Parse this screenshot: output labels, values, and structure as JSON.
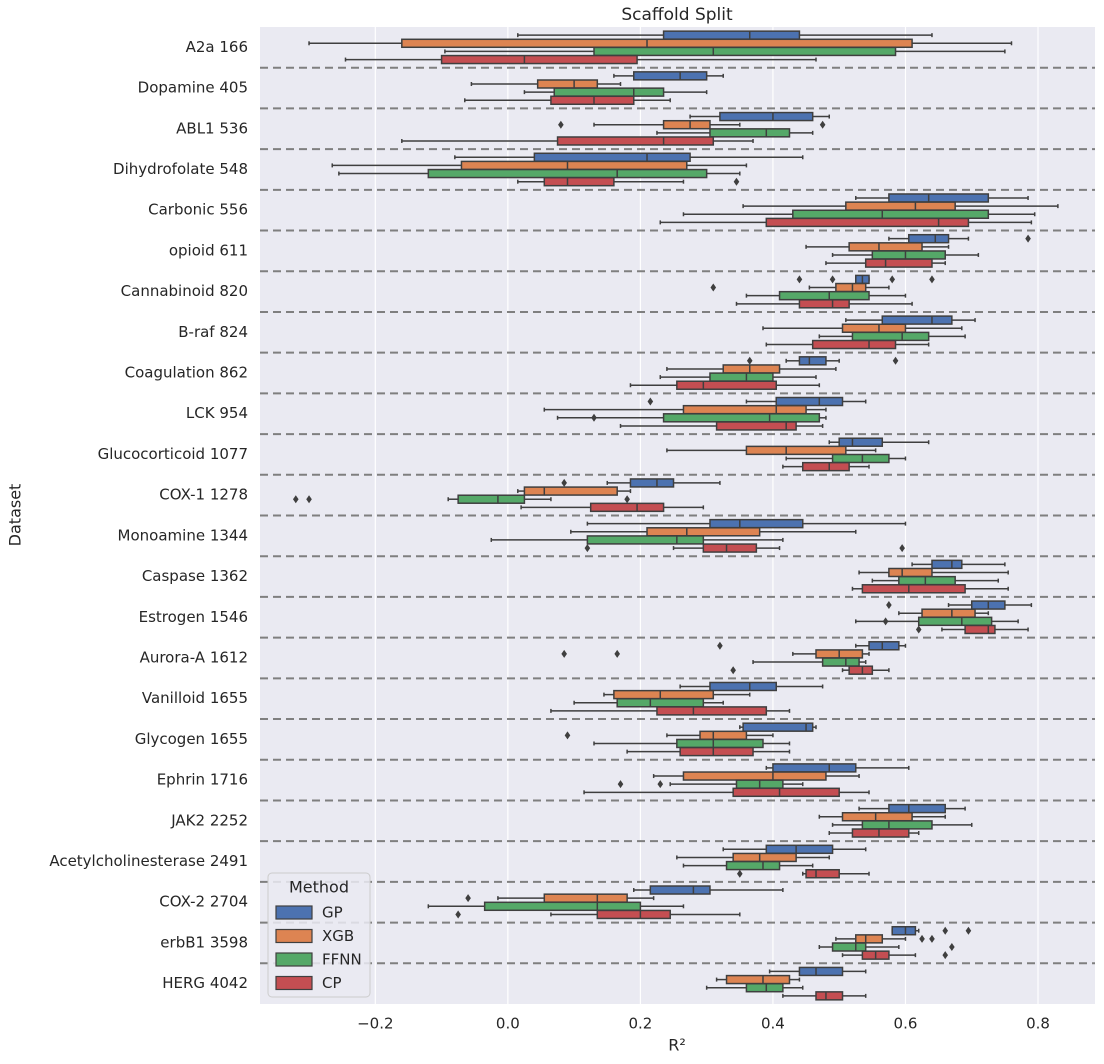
{
  "chart_data": {
    "type": "boxplot",
    "title": "Scaffold Split",
    "x_label": "R²",
    "y_label": "Dataset",
    "orientation": "horizontal",
    "grid": true,
    "legend_title": "Method",
    "legend_position": "lower left",
    "xlim": [
      -0.374,
      0.886
    ],
    "xticks": [
      {
        "value": -0.2,
        "label": "−0.2"
      },
      {
        "value": 0,
        "label": "0.0"
      },
      0.2,
      0.4,
      0.6,
      0.8
    ],
    "categories": [
      "A2a 166",
      "Dopamine 405",
      "ABL1 536",
      "Dihydrofolate 548",
      "Carbonic 556",
      "opioid 611",
      "Cannabinoid 820",
      "B-raf 824",
      "Coagulation 862",
      "LCK 954",
      "Glucocorticoid 1077",
      "COX-1 1278",
      "Monoamine 1344",
      "Caspase 1362",
      "Estrogen 1546",
      "Aurora-A 1612",
      "Vanilloid 1655",
      "Glycogen 1655",
      "Ephrin 1716",
      "JAK2 2252",
      "Acetylcholinesterase 2491",
      "COX-2 2704",
      "erbB1 3598",
      "HERG 4042"
    ],
    "series": [
      {
        "name": "GP",
        "color": "#4c72b0",
        "boxes": [
          [
            0.015,
            0.235,
            0.365,
            0.44,
            0.64
          ],
          [
            0.16,
            0.19,
            0.26,
            0.3,
            0.325
          ],
          [
            0.275,
            0.32,
            0.4,
            0.46,
            0.485
          ],
          [
            -0.08,
            0.04,
            0.21,
            0.275,
            0.445
          ],
          [
            0.525,
            0.575,
            0.635,
            0.725,
            0.785
          ],
          [
            0.575,
            0.605,
            0.645,
            0.665,
            0.695
          ],
          [
            0.525,
            0.525,
            0.535,
            0.545,
            0.545
          ],
          [
            0.51,
            0.565,
            0.64,
            0.67,
            0.705
          ],
          [
            0.42,
            0.44,
            0.455,
            0.48,
            0.5
          ],
          [
            0.36,
            0.405,
            0.47,
            0.505,
            0.54
          ],
          [
            0.485,
            0.5,
            0.52,
            0.565,
            0.635
          ],
          [
            0.15,
            0.185,
            0.225,
            0.25,
            0.32
          ],
          [
            0.12,
            0.305,
            0.35,
            0.445,
            0.6
          ],
          [
            0.61,
            0.64,
            0.67,
            0.685,
            0.75
          ],
          [
            0.665,
            0.7,
            0.725,
            0.75,
            0.79
          ],
          [
            0.525,
            0.545,
            0.565,
            0.59,
            0.6
          ],
          [
            0.26,
            0.305,
            0.365,
            0.405,
            0.475
          ],
          [
            0.35,
            0.355,
            0.45,
            0.46,
            0.465
          ],
          [
            0.39,
            0.4,
            0.485,
            0.525,
            0.605
          ],
          [
            0.53,
            0.575,
            0.605,
            0.66,
            0.69
          ],
          [
            0.325,
            0.39,
            0.435,
            0.49,
            0.54
          ],
          [
            0.19,
            0.215,
            0.28,
            0.305,
            0.415
          ],
          [
            0.58,
            0.58,
            0.6,
            0.615,
            0.62
          ],
          [
            0.395,
            0.44,
            0.465,
            0.505,
            0.54
          ]
        ],
        "outliers": [
          [],
          [],
          [],
          [],
          [],
          [
            0.785
          ],
          [
            0.44,
            0.49,
            0.58,
            0.64
          ],
          [],
          [
            0.365,
            0.585
          ],
          [
            0.215
          ],
          [],
          [
            0.085
          ],
          [],
          [],
          [
            0.575
          ],
          [
            0.32
          ],
          [],
          [],
          [],
          [],
          [],
          [],
          [
            0.66,
            0.695
          ],
          []
        ]
      },
      {
        "name": "XGB",
        "color": "#dd8452",
        "boxes": [
          [
            -0.3,
            -0.16,
            0.21,
            0.61,
            0.76
          ],
          [
            -0.055,
            0.045,
            0.1,
            0.135,
            0.17
          ],
          [
            0.13,
            0.235,
            0.275,
            0.305,
            0.35
          ],
          [
            -0.265,
            -0.07,
            0.09,
            0.27,
            0.36
          ],
          [
            0.355,
            0.51,
            0.615,
            0.675,
            0.83
          ],
          [
            0.45,
            0.515,
            0.56,
            0.625,
            0.665
          ],
          [
            0.455,
            0.495,
            0.52,
            0.54,
            0.575
          ],
          [
            0.385,
            0.505,
            0.56,
            0.6,
            0.685
          ],
          [
            0.24,
            0.325,
            0.365,
            0.41,
            0.495
          ],
          [
            0.055,
            0.265,
            0.405,
            0.45,
            0.48
          ],
          [
            0.24,
            0.36,
            0.42,
            0.51,
            0.555
          ],
          [
            0.015,
            0.025,
            0.055,
            0.165,
            0.185
          ],
          [
            0.095,
            0.21,
            0.27,
            0.38,
            0.525
          ],
          [
            0.53,
            0.575,
            0.595,
            0.64,
            0.755
          ],
          [
            0.59,
            0.625,
            0.67,
            0.705,
            0.725
          ],
          [
            0.43,
            0.465,
            0.5,
            0.535,
            0.545
          ],
          [
            0.145,
            0.16,
            0.23,
            0.31,
            0.365
          ],
          [
            0.24,
            0.29,
            0.31,
            0.36,
            0.4
          ],
          [
            0.22,
            0.265,
            0.4,
            0.48,
            0.53
          ],
          [
            0.47,
            0.505,
            0.555,
            0.61,
            0.66
          ],
          [
            0.255,
            0.34,
            0.38,
            0.435,
            0.485
          ],
          [
            -0.015,
            0.055,
            0.135,
            0.18,
            0.22
          ],
          [
            0.495,
            0.525,
            0.54,
            0.565,
            0.6
          ],
          [
            0.315,
            0.33,
            0.385,
            0.425,
            0.44
          ]
        ],
        "outliers": [
          [],
          [],
          [
            0.08,
            0.475
          ],
          [],
          [],
          [],
          [
            0.31
          ],
          [],
          [],
          [],
          [],
          [],
          [],
          [],
          [],
          [
            0.085,
            0.165
          ],
          [],
          [
            0.09
          ],
          [],
          [],
          [],
          [
            -0.06
          ],
          [
            0.625,
            0.64
          ],
          []
        ]
      },
      {
        "name": "FFNN",
        "color": "#55a868",
        "boxes": [
          [
            -0.095,
            0.13,
            0.31,
            0.585,
            0.75
          ],
          [
            0.025,
            0.07,
            0.19,
            0.235,
            0.3
          ],
          [
            0.225,
            0.305,
            0.39,
            0.425,
            0.46
          ],
          [
            -0.255,
            -0.12,
            0.165,
            0.3,
            0.35
          ],
          [
            0.265,
            0.43,
            0.565,
            0.725,
            0.795
          ],
          [
            0.49,
            0.55,
            0.6,
            0.66,
            0.71
          ],
          [
            0.36,
            0.41,
            0.485,
            0.545,
            0.6
          ],
          [
            0.47,
            0.52,
            0.595,
            0.635,
            0.69
          ],
          [
            0.23,
            0.305,
            0.36,
            0.4,
            0.465
          ],
          [
            0.075,
            0.235,
            0.395,
            0.47,
            0.48
          ],
          [
            0.42,
            0.49,
            0.535,
            0.575,
            0.6
          ],
          [
            -0.09,
            -0.075,
            -0.015,
            0.025,
            0.065
          ],
          [
            -0.025,
            0.12,
            0.255,
            0.295,
            0.415
          ],
          [
            0.55,
            0.59,
            0.63,
            0.675,
            0.74
          ],
          [
            0.525,
            0.62,
            0.685,
            0.73,
            0.77
          ],
          [
            0.37,
            0.475,
            0.51,
            0.53,
            0.54
          ],
          [
            0.1,
            0.165,
            0.215,
            0.295,
            0.325
          ],
          [
            0.13,
            0.255,
            0.31,
            0.385,
            0.425
          ],
          [
            0.245,
            0.345,
            0.38,
            0.415,
            0.445
          ],
          [
            0.49,
            0.535,
            0.575,
            0.64,
            0.7
          ],
          [
            0.265,
            0.33,
            0.385,
            0.41,
            0.46
          ],
          [
            -0.12,
            -0.035,
            0.135,
            0.2,
            0.265
          ],
          [
            0.47,
            0.49,
            0.525,
            0.54,
            0.59
          ],
          [
            0.3,
            0.36,
            0.39,
            0.415,
            0.445
          ]
        ],
        "outliers": [
          [],
          [],
          [],
          [],
          [],
          [],
          [],
          [],
          [],
          [
            0.13
          ],
          [],
          [
            -0.32,
            -0.3,
            0.18
          ],
          [],
          [],
          [
            0.57
          ],
          [],
          [],
          [],
          [
            0.17,
            0.23
          ],
          [],
          [],
          [],
          [
            0.67
          ],
          []
        ]
      },
      {
        "name": "CP",
        "color": "#c44e52",
        "boxes": [
          [
            -0.245,
            -0.1,
            0.025,
            0.195,
            0.465
          ],
          [
            -0.065,
            0.065,
            0.13,
            0.19,
            0.245
          ],
          [
            -0.16,
            0.075,
            0.235,
            0.31,
            0.37
          ],
          [
            0.015,
            0.055,
            0.09,
            0.16,
            0.265
          ],
          [
            0.23,
            0.39,
            0.65,
            0.695,
            0.79
          ],
          [
            0.48,
            0.54,
            0.57,
            0.64,
            0.66
          ],
          [
            0.345,
            0.44,
            0.49,
            0.515,
            0.61
          ],
          [
            0.39,
            0.46,
            0.545,
            0.585,
            0.635
          ],
          [
            0.185,
            0.255,
            0.295,
            0.405,
            0.47
          ],
          [
            0.17,
            0.315,
            0.42,
            0.435,
            0.475
          ],
          [
            0.415,
            0.445,
            0.485,
            0.515,
            0.545
          ],
          [
            0.02,
            0.125,
            0.195,
            0.235,
            0.295
          ],
          [
            0.25,
            0.295,
            0.33,
            0.375,
            0.41
          ],
          [
            0.52,
            0.535,
            0.605,
            0.69,
            0.755
          ],
          [
            0.655,
            0.69,
            0.725,
            0.735,
            0.785
          ],
          [
            0.505,
            0.515,
            0.535,
            0.55,
            0.575
          ],
          [
            0.065,
            0.225,
            0.28,
            0.39,
            0.425
          ],
          [
            0.18,
            0.26,
            0.31,
            0.37,
            0.425
          ],
          [
            0.115,
            0.34,
            0.41,
            0.5,
            0.545
          ],
          [
            0.485,
            0.52,
            0.56,
            0.605,
            0.62
          ],
          [
            0.445,
            0.45,
            0.465,
            0.5,
            0.545
          ],
          [
            0.065,
            0.135,
            0.2,
            0.245,
            0.35
          ],
          [
            0.505,
            0.535,
            0.555,
            0.575,
            0.615
          ],
          [
            0.415,
            0.465,
            0.48,
            0.505,
            0.54
          ]
        ],
        "outliers": [
          [],
          [],
          [],
          [
            0.345
          ],
          [],
          [],
          [],
          [],
          [],
          [],
          [],
          [],
          [
            0.12,
            0.595
          ],
          [],
          [
            0.62
          ],
          [
            0.34
          ],
          [],
          [],
          [],
          [],
          [
            0.35
          ],
          [
            -0.075
          ],
          [
            0.66
          ],
          []
        ]
      }
    ]
  }
}
